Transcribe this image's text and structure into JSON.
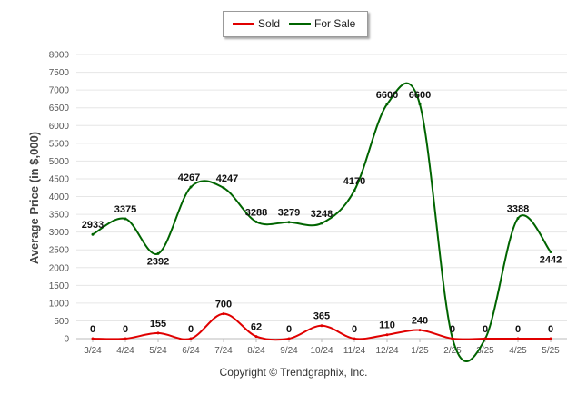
{
  "chart_data": {
    "type": "line",
    "ylabel": "Average Price (in $,000)",
    "categories": [
      "3/24",
      "4/24",
      "5/24",
      "6/24",
      "7/24",
      "8/24",
      "9/24",
      "10/24",
      "11/24",
      "12/24",
      "1/25",
      "2/25",
      "3/25",
      "4/25",
      "5/25"
    ],
    "ylim": [
      0,
      8000
    ],
    "yticks": [
      0,
      500,
      1000,
      1500,
      2000,
      2500,
      3000,
      3500,
      4000,
      4500,
      5000,
      5500,
      6000,
      6500,
      7000,
      7500,
      8000
    ],
    "grid": true,
    "legend": "top-center",
    "series": [
      {
        "name": "Sold",
        "color": "#e00000",
        "values": [
          0,
          0,
          155,
          0,
          700,
          62,
          0,
          365,
          0,
          110,
          240,
          0,
          0,
          0,
          0
        ]
      },
      {
        "name": "For Sale",
        "color": "#006400",
        "values": [
          2933,
          3375,
          2392,
          4267,
          4247,
          3288,
          3279,
          3248,
          4170,
          6600,
          6600,
          0,
          0,
          3388,
          2442
        ]
      }
    ]
  },
  "legend": {
    "sold": "Sold",
    "for_sale": "For Sale"
  },
  "footer": {
    "copyright": "Copyright © Trendgraphix, Inc."
  }
}
